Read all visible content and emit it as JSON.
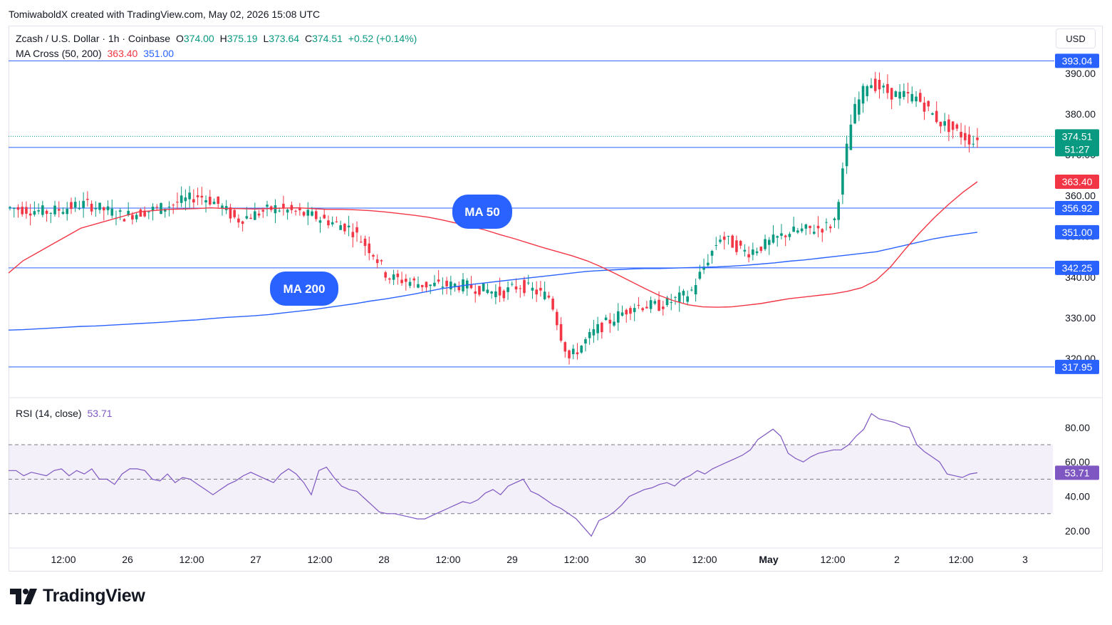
{
  "header": {
    "credit": "TomiwaboldX created with TradingView.com, May 02, 2026 15:08 UTC"
  },
  "symbol": {
    "name": "Zcash / U.S. Dollar · 1h · Coinbase",
    "o_label": "O",
    "o": "374.00",
    "h_label": "H",
    "h": "375.19",
    "l_label": "L",
    "l": "373.64",
    "c_label": "C",
    "c": "374.51",
    "change": "+0.52 (+0.14%)"
  },
  "indicator": {
    "name": "MA Cross (50, 200)",
    "ma50": "363.40",
    "ma200": "351.00"
  },
  "rsi_legend": {
    "name": "RSI (14, close)",
    "value": "53.71"
  },
  "currency": "USD",
  "brand": {
    "name": "TradingView"
  },
  "colors": {
    "up": "#089981",
    "down": "#f23645",
    "ma50": "#f23645",
    "ma200": "#2962ff",
    "rsi": "#7e57c2",
    "hline": "#2962ff",
    "callout": "#2962ff"
  },
  "chart_data": [
    {
      "type": "candlestick",
      "title": "Zcash / U.S. Dollar · 1h · Coinbase",
      "x_ticks": [
        "12:00",
        "26",
        "12:00",
        "27",
        "12:00",
        "28",
        "12:00",
        "29",
        "12:00",
        "30",
        "12:00",
        "May",
        "12:00",
        "2",
        "12:00",
        "3"
      ],
      "y_ticks": [
        320.0,
        330.0,
        340.0,
        350.0,
        360.0,
        370.0,
        380.0,
        390.0
      ],
      "ylim": [
        316,
        400
      ],
      "last_price": 374.51,
      "countdown": "51:27",
      "horizontal_lines": [
        393.04,
        371.8,
        356.92,
        342.25,
        317.95
      ],
      "price_labels": [
        "393.04",
        "374.51",
        "371.80",
        "363.40",
        "356.92",
        "351.00",
        "342.25",
        "317.95"
      ],
      "series": [
        {
          "name": "MA 50",
          "values": [
            341,
            344,
            346,
            348,
            350,
            352,
            353,
            354,
            355,
            356,
            356.3,
            356.6,
            356.7,
            356.8,
            357,
            356.8,
            356.8,
            356.7,
            356.8,
            356.9,
            357,
            356.8,
            356.6,
            356.6,
            356.5,
            356.3,
            356,
            355.6,
            355.2,
            354.7,
            354,
            353.2,
            352.4,
            351.5,
            350.4,
            349.4,
            348.3,
            347.2,
            346.2,
            345.2,
            344,
            342.5,
            340.8,
            339,
            337.2,
            335.5,
            334.2,
            333.2,
            332.7,
            332.6,
            332.7,
            333.1,
            333.5,
            334.1,
            334.7,
            335.1,
            335.5,
            335.9,
            336.5,
            337.4,
            339.2,
            342.5,
            346.8,
            350.8,
            354.5,
            357.8,
            360.8,
            363.4
          ]
        },
        {
          "name": "MA 200",
          "values": [
            327,
            327.1,
            327.3,
            327.5,
            327.7,
            327.9,
            328,
            328.2,
            328.4,
            328.6,
            328.8,
            329,
            329.3,
            329.5,
            329.8,
            330.1,
            330.3,
            330.5,
            330.8,
            331.2,
            331.6,
            332,
            332.5,
            333,
            333.5,
            334.1,
            334.6,
            335.2,
            335.8,
            336.5,
            337.2,
            337.7,
            338.2,
            338.6,
            339,
            339.4,
            339.8,
            340.2,
            340.6,
            341,
            341.4,
            341.6,
            341.8,
            342,
            342.1,
            342.1,
            342.2,
            342.3,
            342.4,
            342.5,
            342.7,
            342.9,
            343.2,
            343.5,
            343.9,
            344.2,
            344.6,
            345,
            345.4,
            345.8,
            346.2,
            347,
            347.8,
            348.6,
            349.4,
            350,
            350.5,
            351
          ]
        }
      ],
      "callouts": [
        "MA 50",
        "MA 200"
      ]
    },
    {
      "type": "line",
      "title": "RSI (14, close)",
      "y_ticks": [
        20.0,
        40.0,
        60.0,
        80.0
      ],
      "ylim": [
        15,
        90
      ],
      "band": [
        30,
        70
      ],
      "midline": 50,
      "last_value": "53.71",
      "series": [
        {
          "name": "RSI",
          "values": [
            55,
            55,
            52,
            54,
            53,
            52,
            55,
            56,
            52,
            55,
            53,
            56,
            50,
            50,
            47,
            53,
            56,
            56,
            55,
            50,
            49,
            53,
            48,
            51,
            50,
            47,
            44,
            41,
            44,
            47,
            49,
            52,
            54,
            52,
            50,
            48,
            53,
            56,
            53,
            48,
            41,
            55,
            57,
            51,
            46,
            44,
            43,
            39,
            35,
            31,
            30,
            30,
            29,
            28,
            27,
            27,
            29,
            31,
            33,
            35,
            37,
            36,
            38,
            42,
            44,
            41,
            46,
            48,
            50,
            43,
            41,
            38,
            35,
            33,
            30,
            27,
            22,
            17,
            26,
            28,
            31,
            35,
            40,
            42,
            44,
            45,
            47,
            48,
            46,
            50,
            52,
            55,
            53,
            56,
            58,
            60,
            62,
            64,
            67,
            73,
            76,
            79,
            75,
            65,
            62,
            60,
            63,
            65,
            66,
            67,
            67,
            70,
            75,
            79,
            88,
            85,
            84,
            83,
            81,
            80,
            70,
            66,
            63,
            60,
            53,
            52,
            51,
            53,
            53.7
          ]
        }
      ]
    }
  ]
}
